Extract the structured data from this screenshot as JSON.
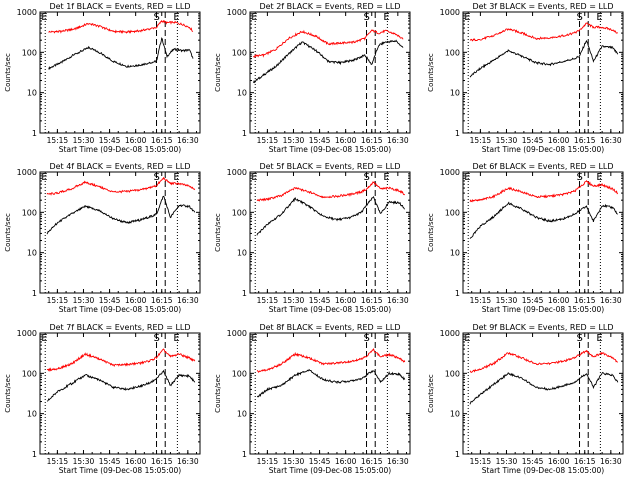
{
  "figure": {
    "ylabel": "Counts/sec",
    "xlabel": "Start Time (09-Dec-08 15:05:00)",
    "xtick_labels": [
      "15:15",
      "15:30",
      "15:45",
      "16:00",
      "16:15",
      "16:30"
    ],
    "ytick_labels": [
      "1",
      "10",
      "100",
      "1000"
    ],
    "marker_labels": [
      "E",
      "S",
      "E"
    ],
    "colors": {
      "events": "#000000",
      "lld": "#ff0000",
      "axes": "#000000"
    }
  },
  "chart_data": [
    {
      "type": "line",
      "title": "Det 1f BLACK = Events, RED = LLD",
      "xlabel": "Start Time (09-Dec-08 15:05:00)",
      "ylabel": "Counts/sec",
      "y_scale": "log",
      "ylim": [
        1,
        1000
      ],
      "xlim_minutes_after_start": [
        0,
        92
      ],
      "markers_minutes": {
        "E_left": 3,
        "S_dash1": 67,
        "S_dash2": 72,
        "E_right": 79
      },
      "x": [
        5,
        12,
        20,
        28,
        35,
        42,
        50,
        57,
        63,
        67,
        70,
        73,
        77,
        82,
        86,
        88
      ],
      "series": [
        {
          "name": "Events",
          "values": [
            40,
            55,
            90,
            130,
            95,
            60,
            45,
            48,
            55,
            60,
            230,
            80,
            120,
            110,
            115,
            70
          ]
        },
        {
          "name": "LLD",
          "values": [
            320,
            330,
            380,
            520,
            430,
            330,
            320,
            340,
            380,
            420,
            600,
            540,
            560,
            490,
            420,
            330
          ]
        }
      ]
    },
    {
      "type": "line",
      "title": "Det 2f BLACK = Events, RED = LLD",
      "xlabel": "Start Time (09-Dec-08 15:05:00)",
      "ylabel": "Counts/sec",
      "y_scale": "log",
      "ylim": [
        1,
        1000
      ],
      "xlim_minutes_after_start": [
        0,
        92
      ],
      "markers_minutes": {
        "E_left": 3,
        "S_dash1": 67,
        "S_dash2": 72,
        "E_right": 79
      },
      "x": [
        2,
        8,
        15,
        22,
        30,
        38,
        45,
        52,
        60,
        66,
        70,
        74,
        78,
        84,
        88
      ],
      "series": [
        {
          "name": "Events",
          "values": [
            18,
            28,
            45,
            90,
            180,
            110,
            60,
            55,
            65,
            85,
            50,
            150,
            180,
            190,
            130
          ]
        },
        {
          "name": "LLD",
          "values": [
            80,
            85,
            120,
            220,
            330,
            250,
            160,
            170,
            180,
            220,
            350,
            300,
            340,
            280,
            210
          ]
        }
      ]
    },
    {
      "type": "line",
      "title": "Det 3f BLACK = Events, RED = LLD",
      "xlabel": "Start Time (09-Dec-08 15:05:00)",
      "ylabel": "Counts/sec",
      "y_scale": "log",
      "ylim": [
        1,
        1000
      ],
      "xlim_minutes_after_start": [
        0,
        92
      ],
      "markers_minutes": {
        "E_left": 3,
        "S_dash1": 67,
        "S_dash2": 72,
        "E_right": 79
      },
      "x": [
        4,
        10,
        18,
        26,
        34,
        42,
        50,
        58,
        64,
        67,
        71,
        75,
        80,
        86,
        89
      ],
      "series": [
        {
          "name": "Events",
          "values": [
            25,
            40,
            65,
            110,
            80,
            55,
            50,
            60,
            70,
            80,
            200,
            60,
            140,
            130,
            90
          ]
        },
        {
          "name": "LLD",
          "values": [
            200,
            210,
            260,
            380,
            300,
            220,
            230,
            260,
            300,
            350,
            520,
            420,
            420,
            360,
            300
          ]
        }
      ]
    },
    {
      "type": "line",
      "title": "Det 4f BLACK = Events, RED = LLD",
      "xlabel": "Start Time (09-Dec-08 15:05:00)",
      "ylabel": "Counts/sec",
      "y_scale": "log",
      "ylim": [
        1,
        1000
      ],
      "xlim_minutes_after_start": [
        0,
        92
      ],
      "markers_minutes": {
        "E_left": 3,
        "S_dash1": 67,
        "S_dash2": 72,
        "E_right": 79
      },
      "x": [
        4,
        10,
        18,
        26,
        34,
        42,
        50,
        58,
        64,
        67,
        71,
        75,
        80,
        86,
        89
      ],
      "series": [
        {
          "name": "Events",
          "values": [
            30,
            55,
            90,
            140,
            110,
            70,
            55,
            65,
            80,
            90,
            260,
            75,
            150,
            140,
            100
          ]
        },
        {
          "name": "LLD",
          "values": [
            280,
            300,
            380,
            560,
            430,
            320,
            330,
            360,
            420,
            460,
            700,
            520,
            520,
            440,
            360
          ]
        }
      ]
    },
    {
      "type": "line",
      "title": "Det 5f BLACK = Events, RED = LLD",
      "xlabel": "Start Time (09-Dec-08 15:05:00)",
      "ylabel": "Counts/sec",
      "y_scale": "log",
      "ylim": [
        1,
        1000
      ],
      "xlim_minutes_after_start": [
        0,
        92
      ],
      "markers_minutes": {
        "E_left": 3,
        "S_dash1": 67,
        "S_dash2": 72,
        "E_right": 79
      },
      "x": [
        4,
        10,
        18,
        26,
        34,
        42,
        50,
        58,
        64,
        67,
        71,
        75,
        80,
        86,
        89
      ],
      "series": [
        {
          "name": "Events",
          "values": [
            28,
            50,
            90,
            220,
            140,
            80,
            65,
            75,
            100,
            150,
            240,
            90,
            180,
            170,
            120
          ]
        },
        {
          "name": "LLD",
          "values": [
            200,
            210,
            260,
            400,
            320,
            240,
            250,
            280,
            320,
            380,
            560,
            380,
            400,
            340,
            280
          ]
        }
      ]
    },
    {
      "type": "line",
      "title": "Det 6f BLACK = Events, RED = LLD",
      "xlabel": "Start Time (09-Dec-08 15:05:00)",
      "ylabel": "Counts/sec",
      "y_scale": "log",
      "ylim": [
        1,
        1000
      ],
      "xlim_minutes_after_start": [
        0,
        92
      ],
      "markers_minutes": {
        "E_left": 3,
        "S_dash1": 67,
        "S_dash2": 72,
        "E_right": 79
      },
      "x": [
        4,
        10,
        18,
        26,
        34,
        42,
        50,
        58,
        64,
        67,
        71,
        75,
        80,
        86,
        89
      ],
      "series": [
        {
          "name": "Events",
          "values": [
            22,
            45,
            80,
            170,
            120,
            75,
            60,
            70,
            90,
            110,
            140,
            60,
            150,
            130,
            90
          ]
        },
        {
          "name": "LLD",
          "values": [
            190,
            200,
            250,
            400,
            320,
            240,
            250,
            280,
            330,
            420,
            580,
            450,
            480,
            380,
            300
          ]
        }
      ]
    },
    {
      "type": "line",
      "title": "Det 7f BLACK = Events, RED = LLD",
      "xlabel": "Start Time (09-Dec-08 15:05:00)",
      "ylabel": "Counts/sec",
      "y_scale": "log",
      "ylim": [
        1,
        1000
      ],
      "xlim_minutes_after_start": [
        0,
        92
      ],
      "markers_minutes": {
        "E_left": 3,
        "S_dash1": 67,
        "S_dash2": 72,
        "E_right": 79
      },
      "x": [
        4,
        10,
        18,
        26,
        34,
        42,
        50,
        58,
        64,
        67,
        71,
        75,
        80,
        86,
        89
      ],
      "series": [
        {
          "name": "Events",
          "values": [
            20,
            35,
            55,
            90,
            70,
            45,
            40,
            48,
            60,
            75,
            110,
            50,
            90,
            85,
            60
          ]
        },
        {
          "name": "LLD",
          "values": [
            120,
            130,
            170,
            300,
            230,
            160,
            165,
            180,
            210,
            250,
            380,
            260,
            300,
            240,
            200
          ]
        }
      ]
    },
    {
      "type": "line",
      "title": "Det 8f BLACK = Events, RED = LLD",
      "xlabel": "Start Time (09-Dec-08 15:05:00)",
      "ylabel": "Counts/sec",
      "y_scale": "log",
      "ylim": [
        1,
        1000
      ],
      "xlim_minutes_after_start": [
        0,
        92
      ],
      "markers_minutes": {
        "E_left": 3,
        "S_dash1": 67,
        "S_dash2": 72,
        "E_right": 79
      },
      "x": [
        4,
        10,
        18,
        26,
        34,
        42,
        50,
        58,
        64,
        67,
        71,
        75,
        80,
        86,
        89
      ],
      "series": [
        {
          "name": "Events",
          "values": [
            25,
            40,
            50,
            90,
            120,
            70,
            60,
            65,
            75,
            90,
            120,
            60,
            100,
            95,
            70
          ]
        },
        {
          "name": "LLD",
          "values": [
            110,
            120,
            170,
            300,
            240,
            170,
            180,
            200,
            230,
            270,
            380,
            260,
            290,
            240,
            190
          ]
        }
      ]
    },
    {
      "type": "line",
      "title": "Det 9f BLACK = Events, RED = LLD",
      "xlabel": "Start Time (09-Dec-08 15:05:00)",
      "ylabel": "Counts/sec",
      "y_scale": "log",
      "ylim": [
        1,
        1000
      ],
      "xlim_minutes_after_start": [
        0,
        92
      ],
      "markers_minutes": {
        "E_left": 3,
        "S_dash1": 67,
        "S_dash2": 72,
        "E_right": 79
      },
      "x": [
        4,
        10,
        18,
        26,
        34,
        42,
        50,
        58,
        64,
        67,
        71,
        75,
        80,
        86,
        89
      ],
      "series": [
        {
          "name": "Events",
          "values": [
            18,
            30,
            55,
            100,
            75,
            45,
            40,
            50,
            60,
            75,
            100,
            45,
            100,
            90,
            60
          ]
        },
        {
          "name": "LLD",
          "values": [
            110,
            125,
            180,
            320,
            240,
            170,
            175,
            200,
            240,
            290,
            360,
            260,
            320,
            250,
            190
          ]
        }
      ]
    }
  ]
}
